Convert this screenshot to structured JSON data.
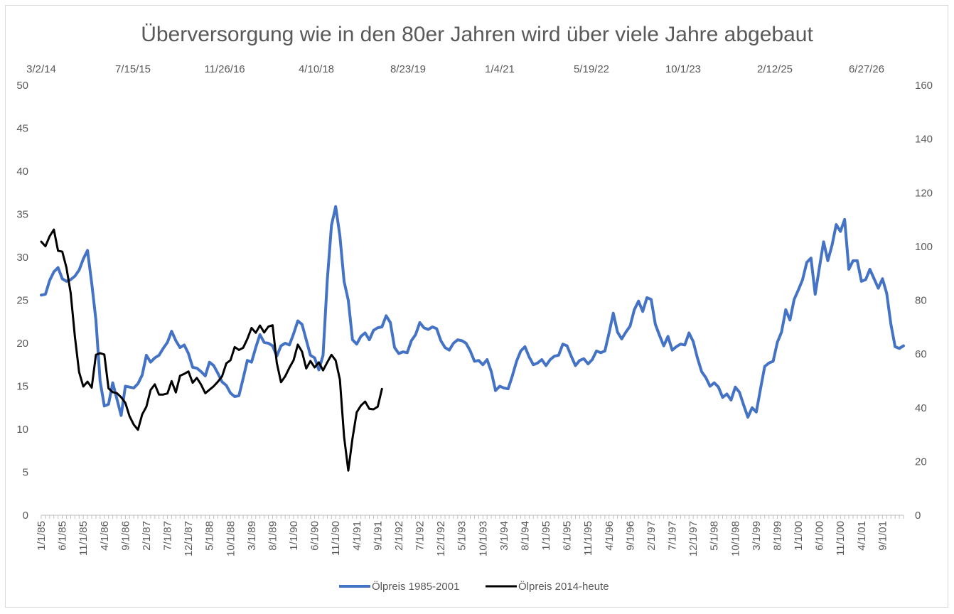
{
  "chart_data": {
    "type": "line",
    "title": "Überversorgung wie in den 80er Jahren wird über viele Jahre abgebaut",
    "left_axis": {
      "ticks": [
        0,
        5,
        10,
        15,
        20,
        25,
        30,
        35,
        40,
        45,
        50
      ],
      "ylim": [
        0,
        50
      ]
    },
    "right_axis": {
      "ticks": [
        0,
        20,
        40,
        60,
        80,
        100,
        120,
        140,
        160
      ],
      "ylim": [
        0,
        160
      ]
    },
    "bottom_axis": {
      "tick_labels": [
        "1/1/85",
        "6/1/85",
        "11/1/85",
        "4/1/86",
        "9/1/86",
        "2/1/87",
        "7/1/87",
        "12/1/87",
        "5/1/88",
        "10/1/88",
        "3/1/89",
        "8/1/89",
        "1/1/90",
        "6/1/90",
        "11/1/90",
        "4/1/91",
        "9/1/91",
        "2/1/92",
        "7/1/92",
        "12/1/92",
        "5/1/93",
        "10/1/93",
        "3/1/94",
        "8/1/94",
        "1/1/95",
        "6/1/95",
        "11/1/95",
        "4/1/96",
        "9/1/96",
        "2/1/97",
        "7/1/97",
        "12/1/97",
        "5/1/98",
        "10/1/98",
        "3/1/99",
        "8/1/99",
        "1/1/00",
        "6/1/00",
        "11/1/00",
        "4/1/01",
        "9/1/01"
      ]
    },
    "top_axis": {
      "tick_labels": [
        "3/2/14",
        "7/15/15",
        "11/26/16",
        "4/10/18",
        "8/23/19",
        "1/4/21",
        "5/19/22",
        "10/1/23",
        "2/12/25",
        "6/27/26"
      ]
    },
    "legend": {
      "position": "bottom"
    },
    "grid": false,
    "series": [
      {
        "name": "Ölpreis 1985-2001",
        "color": "#4472c4",
        "axis": "left",
        "values": [
          25.6,
          25.7,
          27.3,
          28.3,
          28.8,
          27.5,
          27.2,
          27.4,
          27.8,
          28.5,
          29.8,
          30.8,
          27.0,
          22.7,
          15.6,
          12.7,
          12.9,
          15.4,
          13.5,
          11.6,
          15.0,
          14.9,
          14.8,
          15.3,
          16.3,
          18.6,
          17.8,
          18.3,
          18.6,
          19.4,
          20.1,
          21.4,
          20.3,
          19.5,
          19.8,
          18.8,
          17.2,
          17.1,
          16.7,
          16.2,
          17.8,
          17.4,
          16.5,
          15.5,
          15.1,
          14.2,
          13.8,
          13.9,
          15.9,
          18.0,
          17.8,
          19.5,
          21.0,
          20.1,
          20.0,
          19.7,
          18.5,
          19.7,
          20.0,
          19.8,
          21.1,
          22.6,
          22.2,
          20.4,
          18.6,
          18.3,
          16.9,
          18.6,
          27.3,
          33.7,
          35.9,
          32.5,
          27.2,
          25.0,
          20.4,
          19.9,
          20.8,
          21.2,
          20.4,
          21.5,
          21.8,
          21.9,
          23.2,
          22.4,
          19.5,
          18.8,
          19.0,
          18.9,
          20.3,
          21.0,
          22.4,
          21.8,
          21.6,
          21.9,
          21.7,
          20.3,
          19.5,
          19.2,
          20.0,
          20.4,
          20.3,
          20.0,
          19.1,
          17.9,
          18.0,
          17.5,
          18.1,
          16.7,
          14.5,
          15.0,
          14.8,
          14.7,
          16.2,
          17.9,
          19.1,
          19.6,
          18.4,
          17.5,
          17.7,
          18.1,
          17.4,
          18.1,
          18.5,
          18.6,
          19.9,
          19.7,
          18.5,
          17.4,
          18.0,
          18.2,
          17.6,
          18.1,
          19.1,
          18.9,
          19.1,
          21.2,
          23.5,
          21.3,
          20.5,
          21.3,
          22.0,
          23.9,
          24.9,
          23.7,
          25.3,
          25.1,
          22.2,
          20.9,
          19.7,
          20.8,
          19.2,
          19.6,
          19.9,
          19.8,
          21.2,
          20.2,
          18.3,
          16.7,
          16.0,
          15.0,
          15.4,
          14.9,
          13.7,
          14.1,
          13.4,
          14.9,
          14.3,
          12.8,
          11.4,
          12.5,
          12.0,
          14.7,
          17.3,
          17.7,
          17.9,
          20.1,
          21.3,
          23.9,
          22.7,
          25.1,
          26.2,
          27.4,
          29.4,
          29.9,
          25.7,
          28.8,
          31.8,
          29.6,
          31.4,
          33.8,
          33.0,
          34.4,
          28.6,
          29.6,
          29.6,
          27.2,
          27.4,
          28.6,
          27.5,
          26.4,
          27.5,
          25.8,
          22.2,
          19.6,
          19.4,
          19.7
        ]
      },
      {
        "name": "Ölpreis 2014-heute",
        "color": "#000000",
        "axis": "right",
        "values": [
          101.8,
          100.1,
          103.8,
          106.3,
          98.4,
          98.1,
          92.1,
          82.7,
          66.5,
          53.3,
          47.9,
          49.7,
          47.5,
          59.7,
          60.3,
          59.8,
          47.2,
          45.8,
          45.4,
          43.9,
          41.8,
          36.8,
          33.7,
          31.8,
          37.5,
          40.4,
          46.6,
          48.7,
          44.9,
          44.9,
          45.3,
          49.9,
          45.7,
          51.9,
          52.6,
          53.5,
          49.3,
          51.1,
          48.6,
          45.4,
          46.7,
          48.0,
          49.7,
          51.7,
          56.5,
          57.7,
          62.6,
          61.5,
          62.3,
          65.6,
          69.7,
          67.9,
          70.6,
          68.0,
          70.2,
          70.7,
          56.7,
          49.5,
          51.7,
          54.9,
          57.7,
          63.5,
          60.9,
          54.6,
          57.4,
          55.0,
          56.9,
          53.9,
          56.9,
          59.7,
          57.6,
          50.5,
          29.2,
          16.6,
          28.6,
          38.3,
          40.8,
          42.3,
          39.6,
          39.4,
          40.4,
          47.0
        ]
      }
    ]
  }
}
